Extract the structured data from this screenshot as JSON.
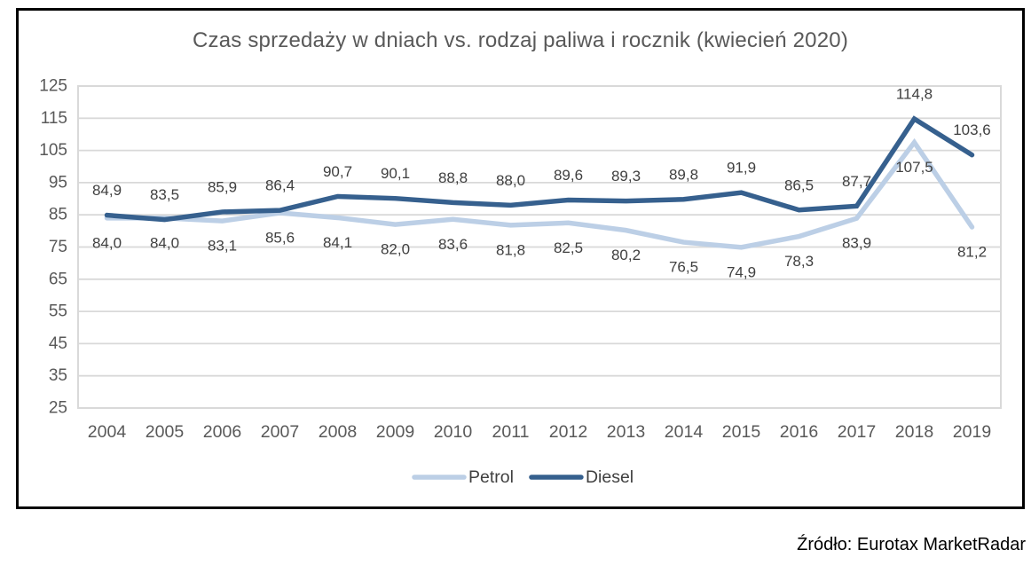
{
  "title": "Czas sprzedaży w dniach vs. rodzaj paliwa i rocznik (kwiecień 2020)",
  "source": "Źródło: Eurotax MarketRadar",
  "legend": {
    "items": [
      {
        "label": "Petrol",
        "color": "#BCCFE6"
      },
      {
        "label": "Diesel",
        "color": "#36608E"
      }
    ]
  },
  "chart_data": {
    "type": "line",
    "title": "Czas sprzedaży w dniach vs. rodzaj paliwa i rocznik (kwiecień 2020)",
    "categories": [
      "2004",
      "2005",
      "2006",
      "2007",
      "2008",
      "2009",
      "2010",
      "2011",
      "2012",
      "2013",
      "2014",
      "2015",
      "2016",
      "2017",
      "2018",
      "2019"
    ],
    "series": [
      {
        "name": "Petrol",
        "color": "#BCCFE6",
        "label_position": "below",
        "values": [
          84.0,
          84.0,
          83.1,
          85.6,
          84.1,
          82.0,
          83.6,
          81.8,
          82.5,
          80.2,
          76.5,
          74.9,
          78.3,
          83.9,
          107.5,
          81.2
        ],
        "labels": [
          "84,0",
          "84,0",
          "83,1",
          "85,6",
          "84,1",
          "82,0",
          "83,6",
          "81,8",
          "82,5",
          "80,2",
          "76,5",
          "74,9",
          "78,3",
          "83,9",
          "107,5",
          "81,2"
        ]
      },
      {
        "name": "Diesel",
        "color": "#36608E",
        "label_position": "above",
        "values": [
          84.9,
          83.5,
          85.9,
          86.4,
          90.7,
          90.1,
          88.8,
          88.0,
          89.6,
          89.3,
          89.8,
          91.9,
          86.5,
          87.7,
          114.8,
          103.6
        ],
        "labels": [
          "84,9",
          "83,5",
          "85,9",
          "86,4",
          "90,7",
          "90,1",
          "88,8",
          "88,0",
          "89,6",
          "89,3",
          "89,8",
          "91,9",
          "86,5",
          "87,7",
          "114,8",
          "103,6"
        ]
      }
    ],
    "xlabel": "",
    "ylabel": "",
    "ylim": [
      25,
      125
    ],
    "ytick_step": 10,
    "yticks": [
      "125",
      "115",
      "105",
      "95",
      "85",
      "75",
      "65",
      "55",
      "45",
      "35",
      "25"
    ],
    "grid": true,
    "legend_position": "bottom",
    "colors": {
      "gridline": "#D9D9D9",
      "plot_border": "#D9D9D9",
      "axis_text": "#595959",
      "label_text": "#404040",
      "legend_text": "#404040",
      "title_text": "#595959",
      "frame_border": "#000000"
    }
  }
}
